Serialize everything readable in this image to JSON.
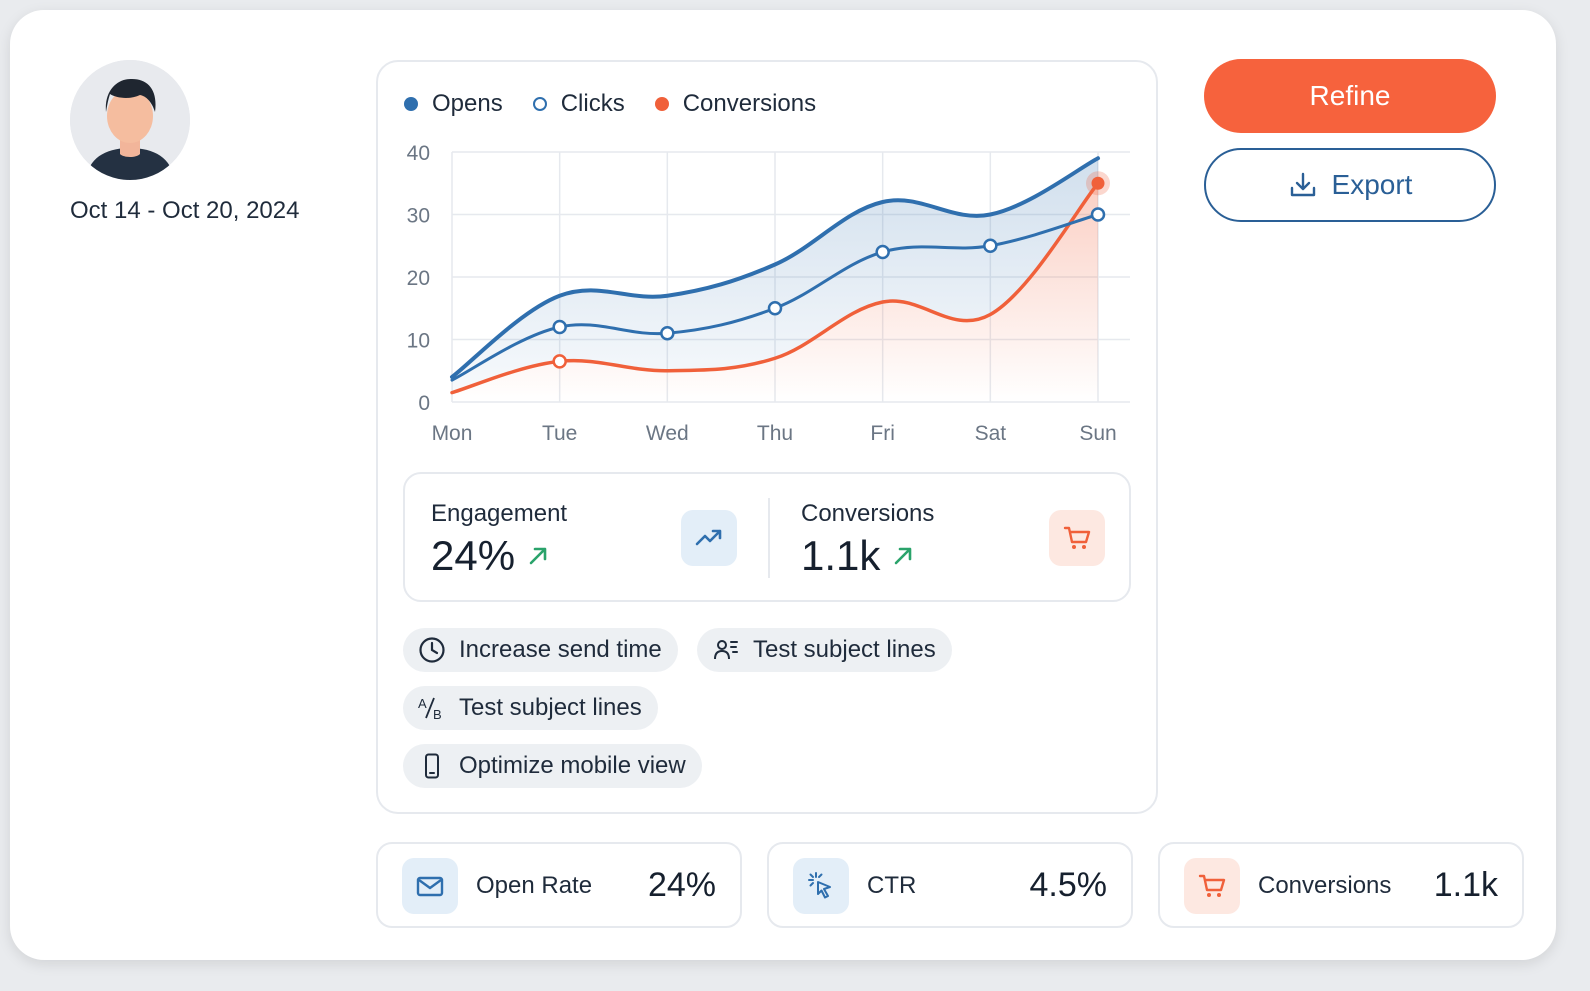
{
  "profile": {
    "date_range": "Oct 14 - Oct 20, 2024"
  },
  "colors": {
    "opens": "#2f6fae",
    "clicks": "#2f6fae",
    "conversions": "#f0603a",
    "accent": "#f6623d"
  },
  "chart_data": {
    "type": "line",
    "categories": [
      "Mon",
      "Tue",
      "Wed",
      "Thu",
      "Fri",
      "Sat",
      "Sun"
    ],
    "series": [
      {
        "name": "Opens",
        "values": [
          4,
          17,
          17,
          22,
          32,
          30,
          39
        ]
      },
      {
        "name": "Clicks",
        "values": [
          3.5,
          12,
          11,
          15,
          24,
          25,
          30
        ]
      },
      {
        "name": "Conversions",
        "values": [
          1.5,
          6.5,
          5,
          7,
          16,
          14,
          35
        ]
      }
    ],
    "yticks": [
      0,
      10,
      20,
      30,
      40
    ],
    "ylim": [
      0,
      40
    ],
    "legend": "top-left",
    "grid": true
  },
  "stats": {
    "engagement": {
      "label": "Engagement",
      "value": "24%",
      "icon": "trend-up-icon"
    },
    "conversions": {
      "label": "Conversions",
      "value": "1.1k",
      "icon": "cart-icon"
    }
  },
  "suggestions": [
    {
      "label": "Increase send time",
      "icon": "clock-icon"
    },
    {
      "label": "Test subject lines",
      "icon": "users-icon"
    },
    {
      "label": "Test subject lines",
      "icon": "ab-test-icon"
    },
    {
      "label": "Optimize mobile view",
      "icon": "mobile-icon"
    }
  ],
  "actions": {
    "refine_label": "Refine",
    "export_label": "Export"
  },
  "kpis": [
    {
      "label": "Open Rate",
      "value": "24%",
      "icon": "mail-icon"
    },
    {
      "label": "CTR",
      "value": "4.5%",
      "icon": "cursor-click-icon"
    },
    {
      "label": "Conversions",
      "value": "1.1k",
      "icon": "cart-icon"
    }
  ]
}
